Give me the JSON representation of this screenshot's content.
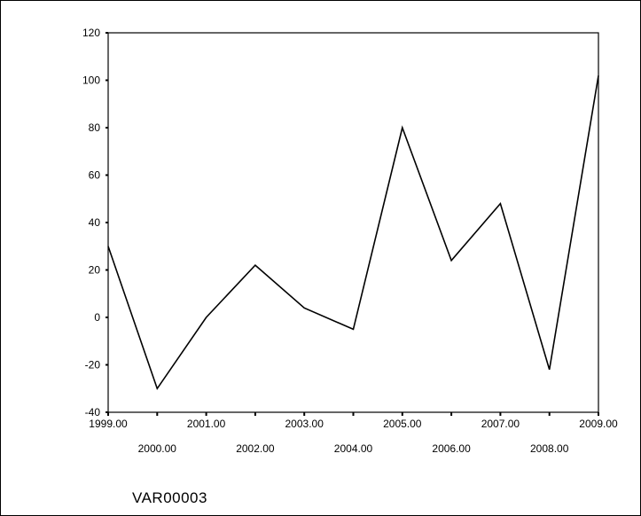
{
  "chart_data": {
    "type": "line",
    "x": [
      1999,
      2000,
      2001,
      2002,
      2003,
      2004,
      2005,
      2006,
      2007,
      2008,
      2009
    ],
    "series": [
      {
        "values": [
          30,
          -30,
          0,
          22,
          4,
          -5,
          80,
          24,
          48,
          -22,
          102
        ]
      }
    ],
    "xlim": [
      1999,
      2009
    ],
    "ylim": [
      -40,
      120
    ],
    "y_ticks": [
      -40,
      -20,
      0,
      20,
      40,
      60,
      80,
      100,
      120
    ],
    "y_tick_labels": [
      "-40",
      "-20",
      "0",
      "20",
      "40",
      "60",
      "80",
      "100",
      "120"
    ],
    "x_ticks": [
      1999,
      2000,
      2001,
      2002,
      2003,
      2004,
      2005,
      2006,
      2007,
      2008,
      2009
    ],
    "x_tick_labels": [
      "1999.00",
      "2000.00",
      "2001.00",
      "2002.00",
      "2003.00",
      "2004.00",
      "2005.00",
      "2006.00",
      "2007.00",
      "2008.00",
      "2009.00"
    ],
    "xlabel": "VAR00003",
    "ylabel": "",
    "title": "",
    "grid": false,
    "line_color": "#000000"
  }
}
